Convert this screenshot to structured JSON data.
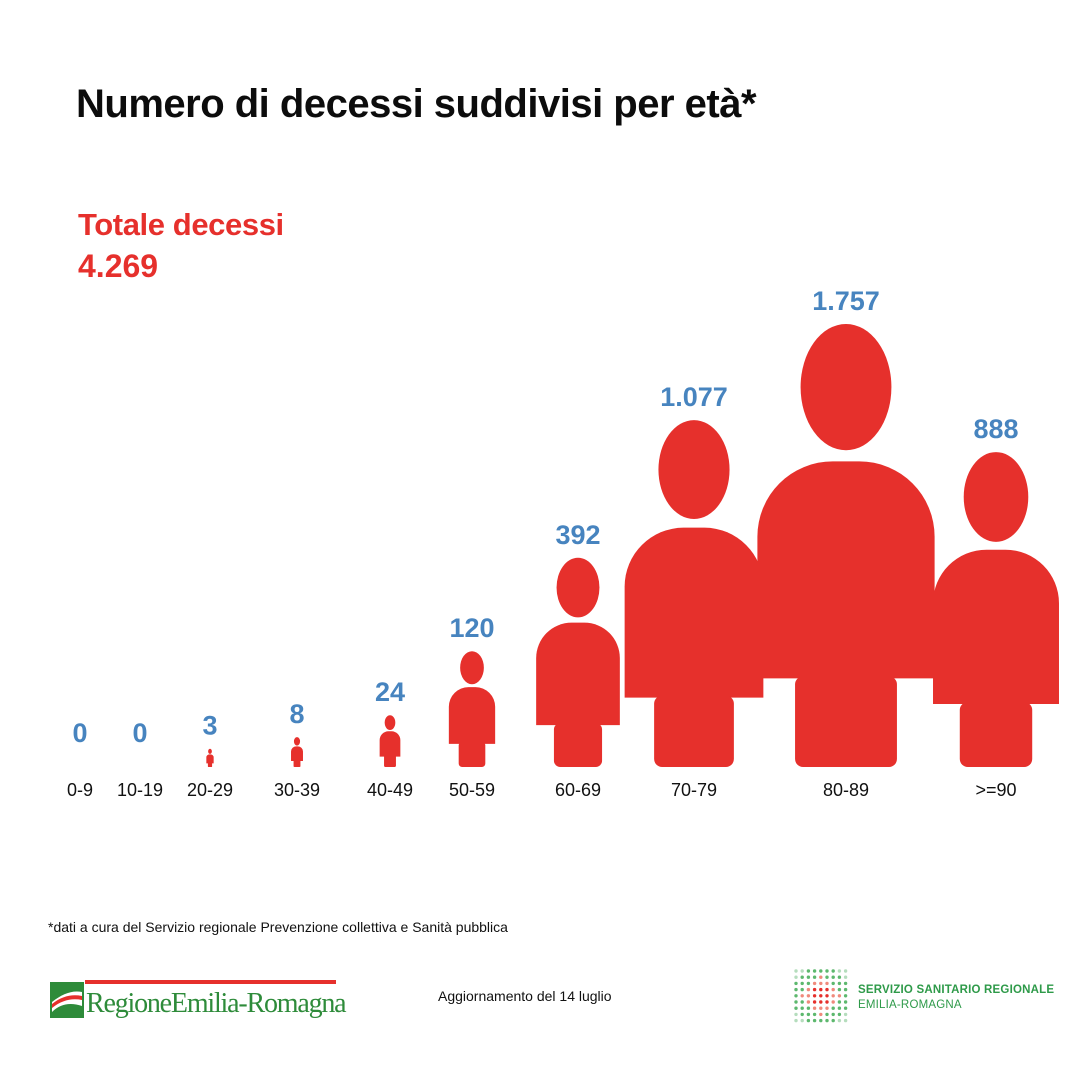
{
  "title": "Numero di decessi suddivisi per età*",
  "total": {
    "label": "Totale decessi",
    "value": "4.269"
  },
  "chart_data": {
    "type": "bar",
    "title": "Numero di decessi suddivisi per età*",
    "categories": [
      "0-9",
      "10-19",
      "20-29",
      "30-39",
      "40-49",
      "50-59",
      "60-69",
      "70-79",
      "80-89",
      ">=90"
    ],
    "values": [
      0,
      0,
      3,
      8,
      24,
      120,
      392,
      1077,
      1757,
      888
    ],
    "value_labels": [
      "0",
      "0",
      "3",
      "8",
      "24",
      "120",
      "392",
      "1.077",
      "1.757",
      "888"
    ],
    "mark": "person-pictogram",
    "colors": {
      "figure": "#e6302c",
      "value": "#4784bf",
      "category": "#111111"
    }
  },
  "footnote": "*dati a cura del Servizio regionale Prevenzione collettiva e Sanità pubblica",
  "update": "Aggiornamento del 14 luglio",
  "logos": {
    "left": {
      "text": "RegioneEmilia-Romagna",
      "icon": "regione-flag-icon"
    },
    "right": {
      "line1": "SERVIZIO SANITARIO REGIONALE",
      "line2": "EMILIA-ROMAGNA",
      "icon": "dot-grid-icon"
    }
  }
}
